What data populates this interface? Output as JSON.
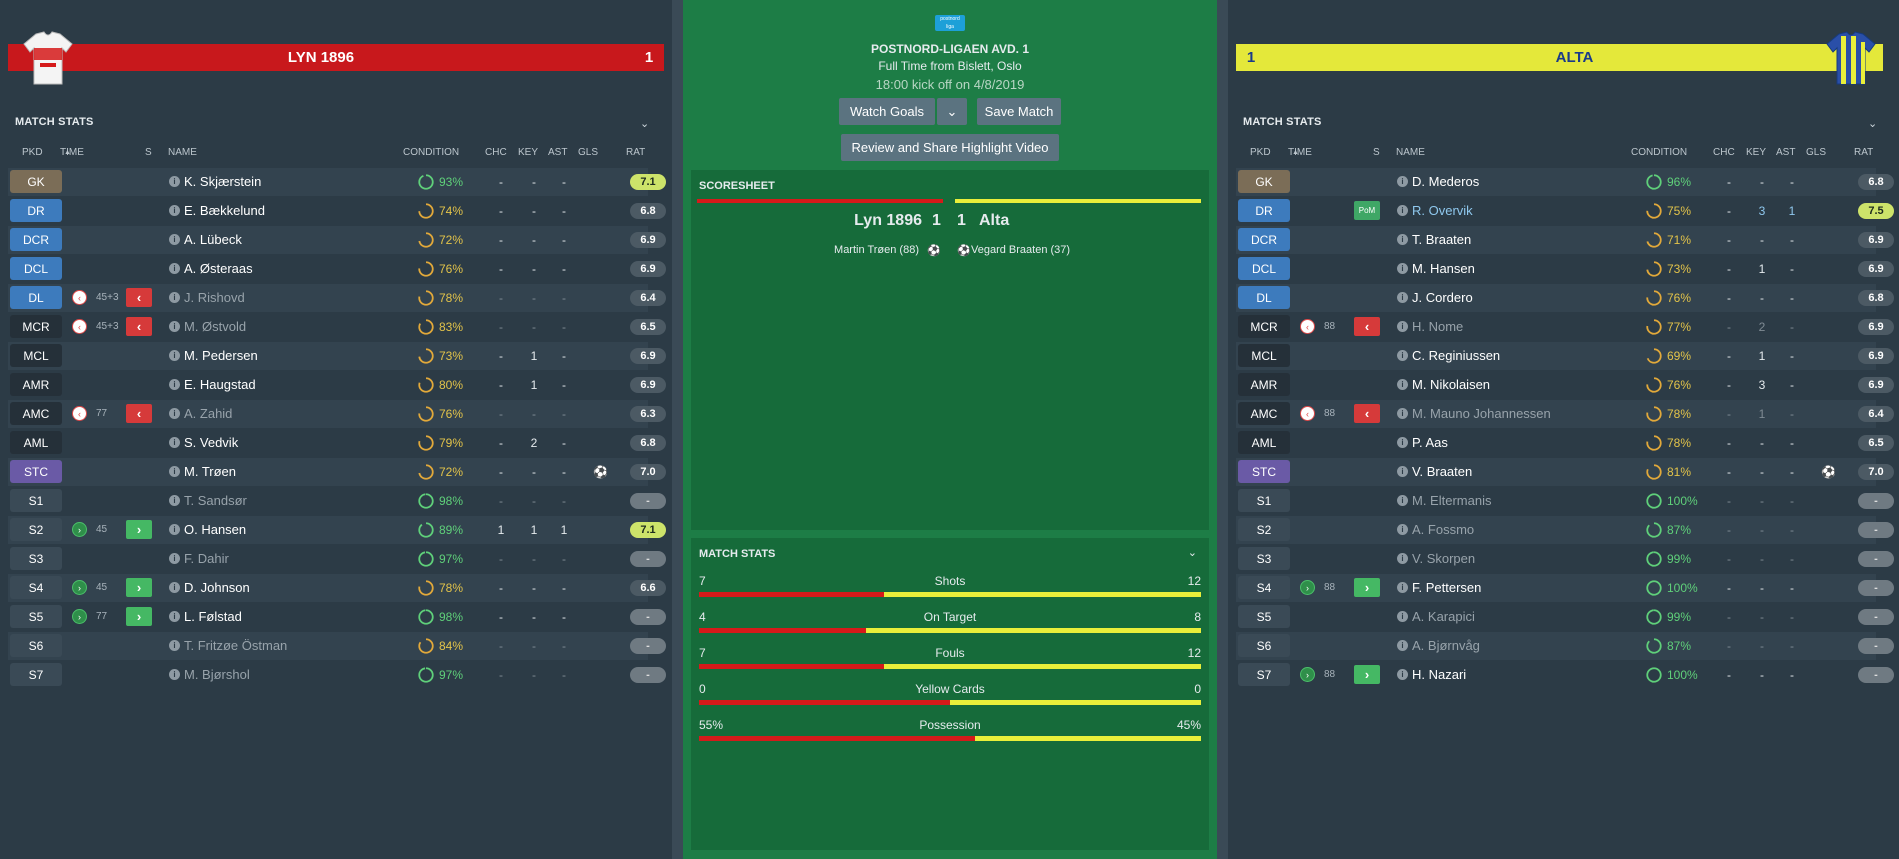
{
  "home": {
    "name": "LYN 1896",
    "score": "1",
    "kit_colors": [
      "#ffffff",
      "#d51a1a"
    ],
    "section_title": "MATCH STATS",
    "columns": [
      "PKD",
      "TIME",
      "S",
      "NAME",
      "CONDITION",
      "CHC",
      "KEY",
      "AST",
      "GLS",
      "RAT"
    ],
    "players": [
      {
        "pos": "GK",
        "name": "K. Skjærstein",
        "cond": "93%",
        "chc": "-",
        "key": "-",
        "ast": "-",
        "gls": "",
        "rat": "7.1"
      },
      {
        "pos": "DR",
        "name": "E. Bækkelund",
        "cond": "74%",
        "chc": "-",
        "key": "-",
        "ast": "-",
        "gls": "",
        "rat": "6.8"
      },
      {
        "pos": "DCR",
        "name": "A. Lübeck",
        "cond": "72%",
        "chc": "-",
        "key": "-",
        "ast": "-",
        "gls": "",
        "rat": "6.9"
      },
      {
        "pos": "DCL",
        "name": "A. Østeraas",
        "cond": "76%",
        "chc": "-",
        "key": "-",
        "ast": "-",
        "gls": "",
        "rat": "6.9"
      },
      {
        "pos": "DL",
        "time": "45+3",
        "name": "J. Rishovd",
        "cond": "78%",
        "chc": "-",
        "key": "-",
        "ast": "-",
        "gls": "",
        "rat": "6.4"
      },
      {
        "pos": "MCR",
        "time": "45+3",
        "name": "M. Østvold",
        "cond": "83%",
        "chc": "-",
        "key": "-",
        "ast": "-",
        "gls": "",
        "rat": "6.5"
      },
      {
        "pos": "MCL",
        "name": "M. Pedersen",
        "cond": "73%",
        "chc": "-",
        "key": "1",
        "ast": "-",
        "gls": "",
        "rat": "6.9"
      },
      {
        "pos": "AMR",
        "name": "E. Haugstad",
        "cond": "80%",
        "chc": "-",
        "key": "1",
        "ast": "-",
        "gls": "",
        "rat": "6.9"
      },
      {
        "pos": "AMC",
        "time": "77",
        "name": "A. Zahid",
        "cond": "76%",
        "chc": "-",
        "key": "-",
        "ast": "-",
        "gls": "",
        "rat": "6.3"
      },
      {
        "pos": "AML",
        "name": "S. Vedvik",
        "cond": "79%",
        "chc": "-",
        "key": "2",
        "ast": "-",
        "gls": "",
        "rat": "6.8"
      },
      {
        "pos": "STC",
        "name": "M. Trøen",
        "cond": "72%",
        "chc": "-",
        "key": "-",
        "ast": "-",
        "gls": "⚽",
        "rat": "7.0"
      },
      {
        "pos": "S1",
        "name": "T. Sandsør",
        "cond": "98%",
        "chc": "-",
        "key": "-",
        "ast": "-",
        "gls": "",
        "rat": "-"
      },
      {
        "pos": "S2",
        "time": "45",
        "name": "O. Hansen",
        "cond": "89%",
        "chc": "1",
        "key": "1",
        "ast": "1",
        "gls": "",
        "rat": "7.1"
      },
      {
        "pos": "S3",
        "name": "F. Dahir",
        "cond": "97%",
        "chc": "-",
        "key": "-",
        "ast": "-",
        "gls": "",
        "rat": "-"
      },
      {
        "pos": "S4",
        "time": "45",
        "name": "D. Johnson",
        "cond": "78%",
        "chc": "-",
        "key": "-",
        "ast": "-",
        "gls": "",
        "rat": "6.6"
      },
      {
        "pos": "S5",
        "time": "77",
        "name": "L. Følstad",
        "cond": "98%",
        "chc": "-",
        "key": "-",
        "ast": "-",
        "gls": "",
        "rat": "-"
      },
      {
        "pos": "S6",
        "name": "T. Fritzøe Östman",
        "cond": "84%",
        "chc": "-",
        "key": "-",
        "ast": "-",
        "gls": "",
        "rat": "-"
      },
      {
        "pos": "S7",
        "name": "M. Bjørshol",
        "cond": "97%",
        "chc": "-",
        "key": "-",
        "ast": "-",
        "gls": "",
        "rat": "-"
      }
    ]
  },
  "away": {
    "name": "ALTA",
    "score": "1",
    "kit_colors": [
      "#2a4fa8",
      "#e9ef3a"
    ],
    "section_title": "MATCH STATS",
    "columns": [
      "PKD",
      "TIME",
      "S",
      "NAME",
      "CONDITION",
      "CHC",
      "KEY",
      "AST",
      "GLS",
      "RAT"
    ],
    "players": [
      {
        "pos": "GK",
        "name": "D. Mederos",
        "cond": "96%",
        "chc": "-",
        "key": "-",
        "ast": "-",
        "gls": "",
        "rat": "6.8"
      },
      {
        "pos": "DR",
        "pom": "PoM",
        "name": "R. Overvik",
        "cond": "75%",
        "chc": "-",
        "key": "3",
        "ast": "1",
        "gls": "",
        "rat": "7.5"
      },
      {
        "pos": "DCR",
        "name": "T. Braaten",
        "cond": "71%",
        "chc": "-",
        "key": "-",
        "ast": "-",
        "gls": "",
        "rat": "6.9"
      },
      {
        "pos": "DCL",
        "name": "M. Hansen",
        "cond": "73%",
        "chc": "-",
        "key": "1",
        "ast": "-",
        "gls": "",
        "rat": "6.9"
      },
      {
        "pos": "DL",
        "name": "J. Cordero",
        "cond": "76%",
        "chc": "-",
        "key": "-",
        "ast": "-",
        "gls": "",
        "rat": "6.8"
      },
      {
        "pos": "MCR",
        "time": "88",
        "name": "H. Nome",
        "cond": "77%",
        "chc": "-",
        "key": "2",
        "ast": "-",
        "gls": "",
        "rat": "6.9"
      },
      {
        "pos": "MCL",
        "name": "C. Reginiussen",
        "cond": "69%",
        "chc": "-",
        "key": "1",
        "ast": "-",
        "gls": "",
        "rat": "6.9"
      },
      {
        "pos": "AMR",
        "name": "M. Nikolaisen",
        "cond": "76%",
        "chc": "-",
        "key": "3",
        "ast": "-",
        "gls": "",
        "rat": "6.9"
      },
      {
        "pos": "AMC",
        "time": "88",
        "name": "M. Mauno Johannessen",
        "cond": "78%",
        "chc": "-",
        "key": "1",
        "ast": "-",
        "gls": "",
        "rat": "6.4"
      },
      {
        "pos": "AML",
        "name": "P. Aas",
        "cond": "78%",
        "chc": "-",
        "key": "-",
        "ast": "-",
        "gls": "",
        "rat": "6.5"
      },
      {
        "pos": "STC",
        "name": "V. Braaten",
        "cond": "81%",
        "chc": "-",
        "key": "-",
        "ast": "-",
        "gls": "⚽",
        "rat": "7.0"
      },
      {
        "pos": "S1",
        "name": "M. Eltermanis",
        "cond": "100%",
        "chc": "-",
        "key": "-",
        "ast": "-",
        "gls": "",
        "rat": "-"
      },
      {
        "pos": "S2",
        "name": "A. Fossmo",
        "cond": "87%",
        "chc": "-",
        "key": "-",
        "ast": "-",
        "gls": "",
        "rat": "-"
      },
      {
        "pos": "S3",
        "name": "V. Skorpen",
        "cond": "99%",
        "chc": "-",
        "key": "-",
        "ast": "-",
        "gls": "",
        "rat": "-"
      },
      {
        "pos": "S4",
        "time": "88",
        "name": "F. Pettersen",
        "cond": "100%",
        "chc": "-",
        "key": "-",
        "ast": "-",
        "gls": "",
        "rat": "-"
      },
      {
        "pos": "S5",
        "name": "A. Karapici",
        "cond": "99%",
        "chc": "-",
        "key": "-",
        "ast": "-",
        "gls": "",
        "rat": "-"
      },
      {
        "pos": "S6",
        "name": "A. Bjørnvåg",
        "cond": "87%",
        "chc": "-",
        "key": "-",
        "ast": "-",
        "gls": "",
        "rat": "-"
      },
      {
        "pos": "S7",
        "time": "88",
        "name": "H. Nazari",
        "cond": "100%",
        "chc": "-",
        "key": "-",
        "ast": "-",
        "gls": "",
        "rat": "-"
      }
    ]
  },
  "center": {
    "competition": "POSTNORD-LIGAEN AVD. 1",
    "full_time": "Full Time from Bislett, Oslo",
    "kickoff": "18:00 kick off on 4/8/2019",
    "watch_goals": "Watch Goals",
    "save_match": "Save Match",
    "review_share": "Review and Share Highlight Video",
    "scoresheet_title": "SCORESHEET",
    "home_team": "Lyn 1896",
    "home_score": "1",
    "away_score": "1",
    "away_team": "Alta",
    "home_scorer": "Martin Trøen (88)",
    "away_scorer": "Vegard Braaten (37)",
    "stats_title": "MATCH STATS",
    "stats": [
      {
        "home": "7",
        "label": "Shots",
        "away": "12",
        "home_share": 0.368
      },
      {
        "home": "4",
        "label": "On Target",
        "away": "8",
        "home_share": 0.333
      },
      {
        "home": "7",
        "label": "Fouls",
        "away": "12",
        "home_share": 0.368
      },
      {
        "home": "0",
        "label": "Yellow Cards",
        "away": "0",
        "home_share": 0.5
      },
      {
        "home": "55%",
        "label": "Possession",
        "away": "45%",
        "home_share": 0.55
      }
    ]
  }
}
